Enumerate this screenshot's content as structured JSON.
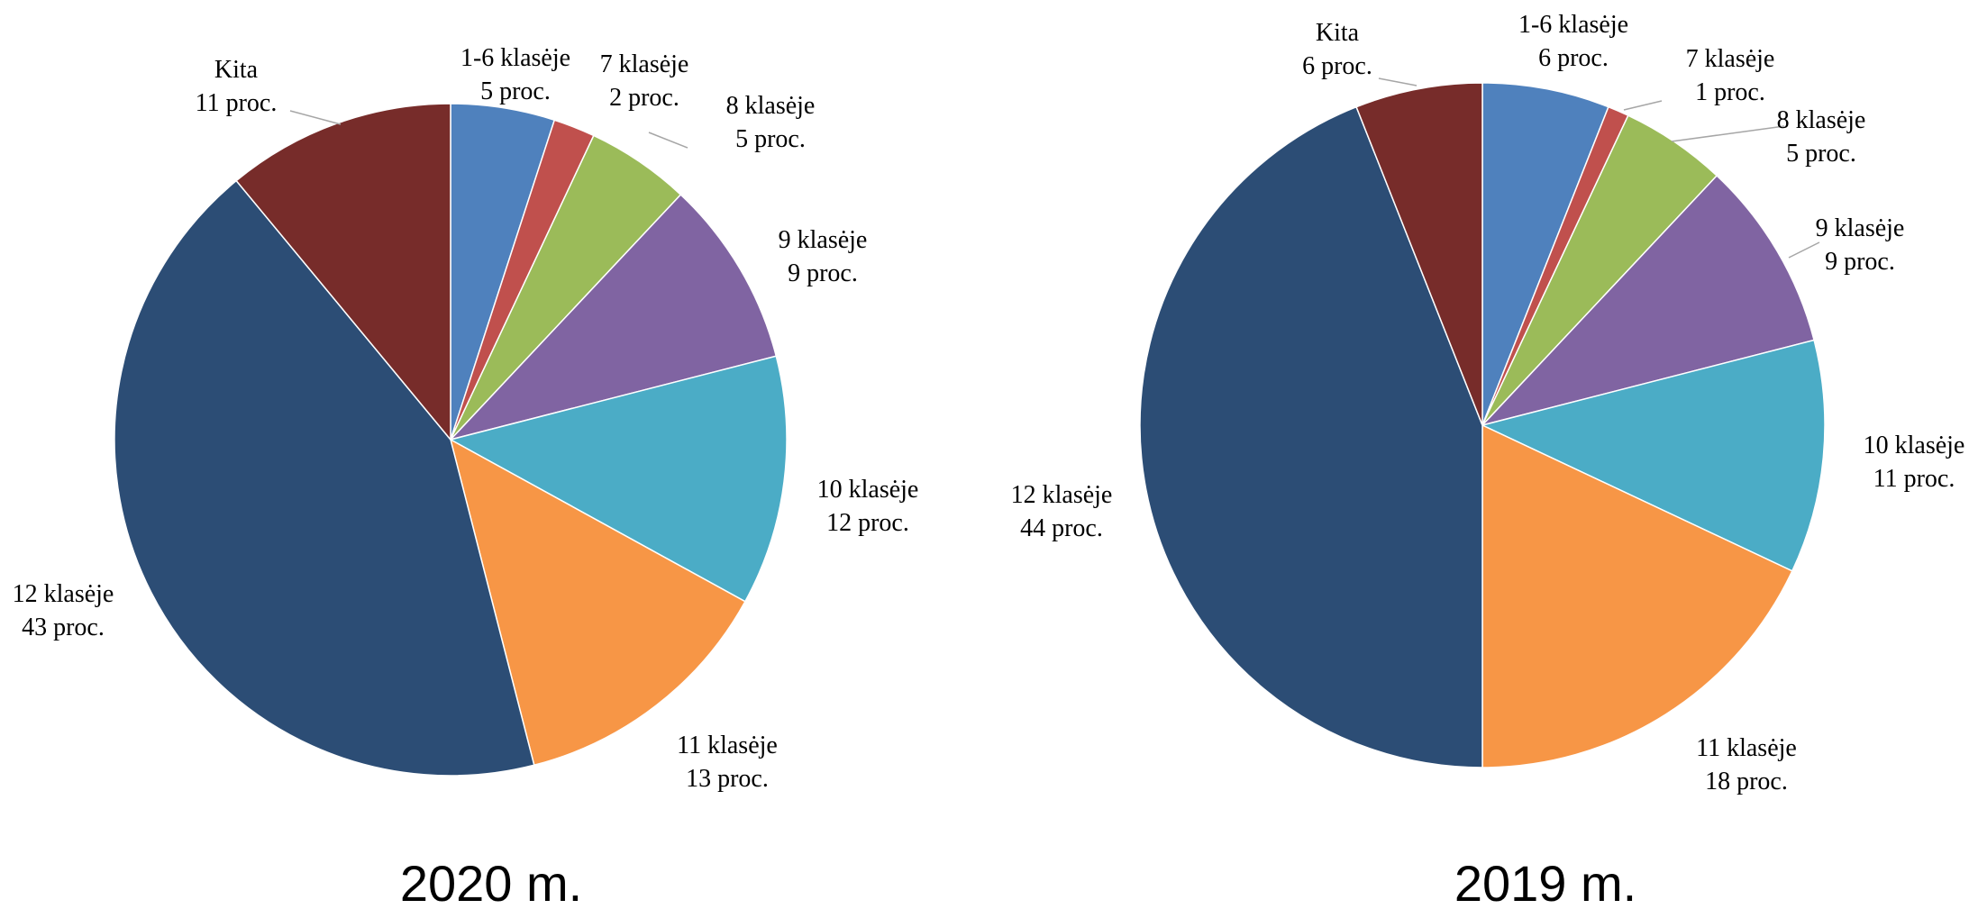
{
  "chart_data": [
    {
      "type": "pie",
      "title": "2020 m.",
      "slices": [
        {
          "name": "1-6 klasėje",
          "value": 5,
          "label": "5 proc.",
          "color": "#4f81bd"
        },
        {
          "name": "7 klasėje",
          "value": 2,
          "label": "2 proc.",
          "color": "#c0504d"
        },
        {
          "name": "8 klasėje",
          "value": 5,
          "label": "5 proc.",
          "color": "#9bbb59"
        },
        {
          "name": "9 klasėje",
          "value": 9,
          "label": "9 proc.",
          "color": "#8064a2"
        },
        {
          "name": "10 klasėje",
          "value": 12,
          "label": "12 proc.",
          "color": "#4bacc6"
        },
        {
          "name": "11 klasėje",
          "value": 13,
          "label": "13 proc.",
          "color": "#f79646"
        },
        {
          "name": "12 klasėje",
          "value": 43,
          "label": "43 proc.",
          "color": "#2c4d75"
        },
        {
          "name": "Kita",
          "value": 11,
          "label": "11 proc.",
          "color": "#772c2a"
        }
      ]
    },
    {
      "type": "pie",
      "title": "2019 m.",
      "slices": [
        {
          "name": "1-6 klasėje",
          "value": 6,
          "label": "6 proc.",
          "color": "#4f81bd"
        },
        {
          "name": "7 klasėje",
          "value": 1,
          "label": "1 proc.",
          "color": "#c0504d"
        },
        {
          "name": "8 klasėje",
          "value": 5,
          "label": "5 proc.",
          "color": "#9bbb59"
        },
        {
          "name": "9 klasėje",
          "value": 9,
          "label": "9 proc.",
          "color": "#8064a2"
        },
        {
          "name": "10 klasėje",
          "value": 11,
          "label": "11 proc.",
          "color": "#4bacc6"
        },
        {
          "name": "11 klasėje",
          "value": 18,
          "label": "18 proc.",
          "color": "#f79646"
        },
        {
          "name": "12 klasėje",
          "value": 44,
          "label": "44 proc.",
          "color": "#2c4d75"
        },
        {
          "name": "Kita",
          "value": 6,
          "label": "6 proc.",
          "color": "#772c2a"
        }
      ]
    }
  ]
}
